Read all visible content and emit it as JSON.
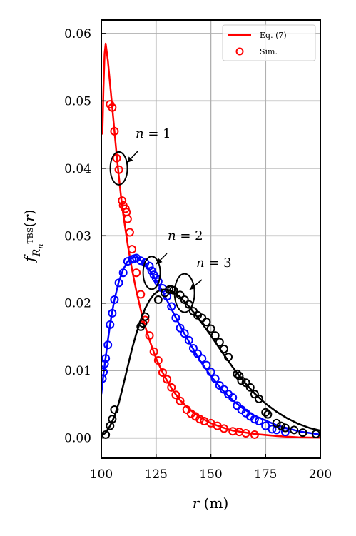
{
  "chart_data": {
    "type": "line",
    "xlabel": "r (m)",
    "ylabel_html": "f_{R_n^{TBS}}(r)",
    "xlim": [
      100,
      200
    ],
    "ylim": [
      -0.003,
      0.062
    ],
    "xticks": [
      "100",
      "125",
      "150",
      "175",
      "200"
    ],
    "yticks": [
      "0.00",
      "0.01",
      "0.02",
      "0.03",
      "0.04",
      "0.05",
      "0.06"
    ],
    "grid": true,
    "legend_position": "top-right",
    "legend": [
      {
        "label": "Eq. (7)",
        "marker": "line",
        "color": "#ff0000"
      },
      {
        "label": "Sim.",
        "marker": "circle",
        "color": "#ff0000"
      }
    ],
    "annotations": [
      {
        "text": "n = 1",
        "target": [
          108,
          0.04
        ]
      },
      {
        "text": "n = 2",
        "target": [
          123,
          0.0245
        ]
      },
      {
        "text": "n = 3",
        "target": [
          138,
          0.0215
        ]
      }
    ],
    "series": [
      {
        "name": "n = 1",
        "color": "#ff0000",
        "curve": {
          "x": [
            100.5,
            101,
            101.5,
            102,
            103,
            104,
            105,
            106,
            107,
            108,
            109,
            110,
            112,
            114,
            116,
            118,
            120,
            122,
            125,
            128,
            130,
            133,
            136,
            140,
            145,
            150,
            155,
            160,
            170,
            180,
            190,
            200
          ],
          "y": [
            0.045,
            0.052,
            0.057,
            0.0585,
            0.056,
            0.0525,
            0.049,
            0.0455,
            0.042,
            0.0388,
            0.0358,
            0.0332,
            0.0288,
            0.025,
            0.0218,
            0.019,
            0.0166,
            0.0145,
            0.0118,
            0.0097,
            0.0085,
            0.0069,
            0.0056,
            0.0043,
            0.0031,
            0.0022,
            0.0016,
            0.0011,
            0.0006,
            0.0003,
            0.0001,
            5e-05
          ]
        },
        "sim": {
          "x": [
            104,
            105,
            106,
            107,
            108,
            109.5,
            110,
            111,
            111.5,
            112,
            113,
            114,
            116,
            118,
            120,
            122,
            124,
            126,
            128,
            130,
            132,
            134,
            136,
            139,
            141,
            143,
            145,
            147,
            150,
            153,
            156,
            160,
            163,
            166,
            170
          ],
          "y": [
            0.0495,
            0.049,
            0.0455,
            0.0415,
            0.0398,
            0.0352,
            0.0345,
            0.034,
            0.0335,
            0.0325,
            0.0305,
            0.028,
            0.0245,
            0.0213,
            0.0175,
            0.0152,
            0.0128,
            0.0115,
            0.0097,
            0.0087,
            0.0075,
            0.0064,
            0.0055,
            0.0042,
            0.0036,
            0.0032,
            0.0028,
            0.0025,
            0.0022,
            0.0018,
            0.0014,
            0.001,
            0.0009,
            0.0007,
            0.0005
          ]
        }
      },
      {
        "name": "n = 2",
        "color": "#0000ff",
        "curve": {
          "x": [
            100,
            101,
            102,
            103,
            104,
            105,
            106,
            108,
            110,
            112,
            114,
            116,
            117.5,
            119,
            121,
            123,
            125,
            128,
            130,
            133,
            136,
            140,
            145,
            150,
            155,
            160,
            165,
            170,
            180,
            190,
            200
          ],
          "y": [
            0.0065,
            0.0095,
            0.012,
            0.0145,
            0.0168,
            0.0188,
            0.0205,
            0.0232,
            0.025,
            0.0262,
            0.0267,
            0.0268,
            0.0265,
            0.026,
            0.0254,
            0.0244,
            0.0234,
            0.0217,
            0.0204,
            0.0185,
            0.0166,
            0.0143,
            0.0115,
            0.0092,
            0.0072,
            0.0056,
            0.0043,
            0.0033,
            0.0019,
            0.001,
            0.0005
          ]
        },
        "sim": {
          "x": [
            100.5,
            101,
            101.5,
            102,
            103,
            104,
            105,
            106,
            108,
            110,
            112,
            114,
            115,
            116,
            118,
            120,
            122,
            123,
            124,
            125,
            126,
            128,
            130,
            132,
            134,
            136,
            138,
            140,
            142,
            144,
            146,
            148,
            150,
            152,
            154,
            156,
            158,
            160,
            162,
            164,
            166,
            168,
            170,
            172,
            175,
            178,
            180,
            184
          ],
          "y": [
            0.0088,
            0.0098,
            0.011,
            0.0118,
            0.0138,
            0.0168,
            0.0185,
            0.0205,
            0.023,
            0.0245,
            0.0262,
            0.0265,
            0.0266,
            0.0267,
            0.0263,
            0.026,
            0.0255,
            0.0248,
            0.0242,
            0.0237,
            0.0232,
            0.0222,
            0.021,
            0.0195,
            0.0178,
            0.0163,
            0.0155,
            0.0145,
            0.0133,
            0.0125,
            0.0118,
            0.0108,
            0.0098,
            0.0088,
            0.0078,
            0.0072,
            0.0065,
            0.006,
            0.0048,
            0.0042,
            0.0037,
            0.0032,
            0.0028,
            0.0025,
            0.0018,
            0.0013,
            0.0012,
            0.0009
          ]
        }
      },
      {
        "name": "n = 3",
        "color": "#000000",
        "curve": {
          "x": [
            100,
            102,
            104,
            106,
            108,
            110,
            112,
            114,
            116,
            118,
            120,
            122,
            124,
            126,
            128,
            130,
            132,
            134,
            136,
            138,
            140,
            143,
            146,
            150,
            155,
            160,
            165,
            170,
            175,
            180,
            185,
            190,
            195,
            200
          ],
          "y": [
            0.0003,
            0.0008,
            0.0018,
            0.0032,
            0.0052,
            0.0078,
            0.0105,
            0.0132,
            0.0155,
            0.0175,
            0.0192,
            0.0204,
            0.0213,
            0.0218,
            0.022,
            0.022,
            0.0218,
            0.0214,
            0.0209,
            0.0202,
            0.0195,
            0.0183,
            0.017,
            0.0152,
            0.0128,
            0.0105,
            0.0084,
            0.0066,
            0.0051,
            0.0039,
            0.0029,
            0.0021,
            0.0015,
            0.0011
          ]
        },
        "sim": {
          "x": [
            102,
            104,
            105,
            106,
            118,
            119,
            120,
            126,
            129,
            131,
            132,
            133,
            136,
            138,
            140,
            142,
            144,
            146,
            148,
            150,
            152,
            154,
            156,
            158,
            162,
            163,
            164,
            166,
            168,
            170,
            172,
            175,
            176,
            180,
            182,
            184,
            188,
            192,
            198
          ],
          "y": [
            0.0005,
            0.0018,
            0.0028,
            0.0042,
            0.0165,
            0.017,
            0.018,
            0.0205,
            0.0215,
            0.022,
            0.022,
            0.0219,
            0.0212,
            0.0205,
            0.0198,
            0.0188,
            0.0182,
            0.0178,
            0.0172,
            0.0162,
            0.0152,
            0.0142,
            0.0132,
            0.012,
            0.0095,
            0.0092,
            0.0085,
            0.0082,
            0.0075,
            0.0065,
            0.0058,
            0.0038,
            0.0035,
            0.0022,
            0.0018,
            0.0015,
            0.0012,
            0.0008,
            0.0006
          ]
        }
      }
    ]
  }
}
